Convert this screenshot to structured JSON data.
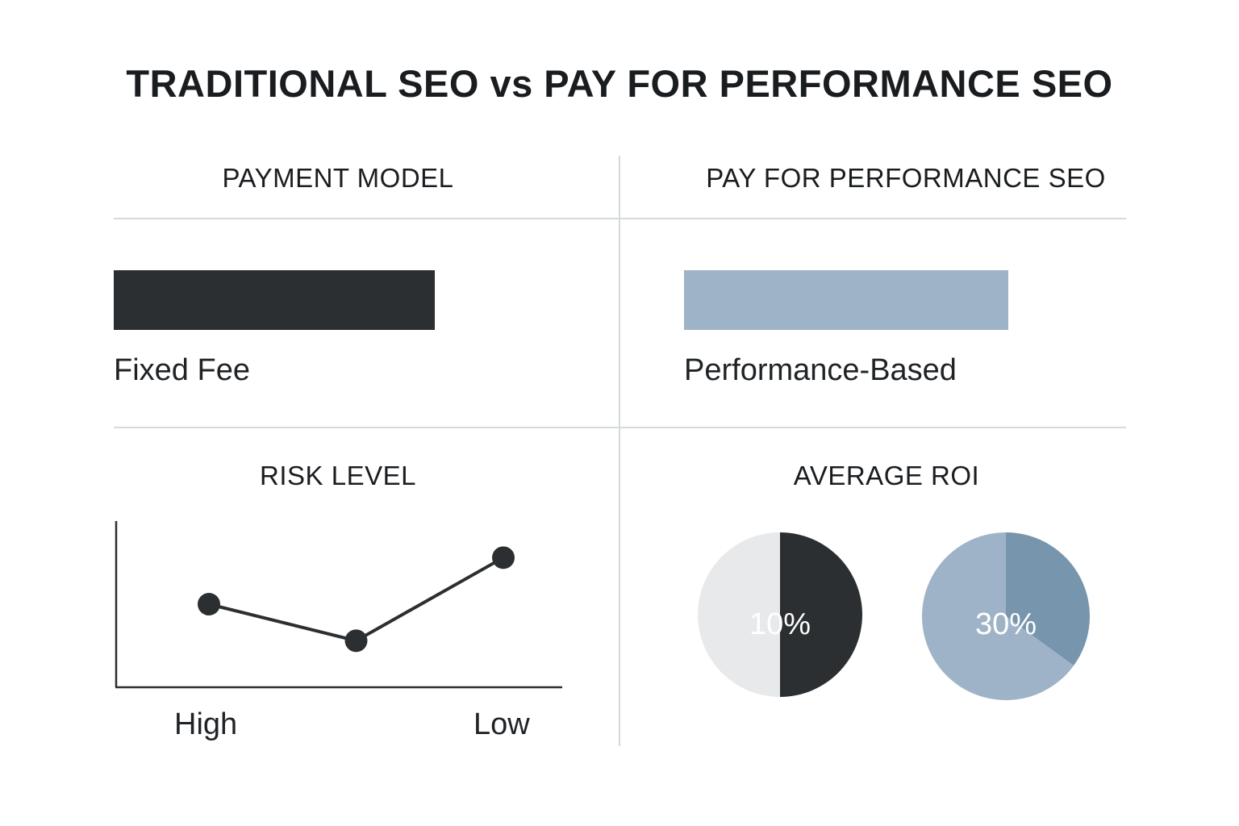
{
  "title": "TRADITIONAL SEO vs PAY FOR PERFORMANCE SEO",
  "colors": {
    "dark": "#2b2f31",
    "blue_light": "#9fb3c8",
    "blue_dark": "#7795ac",
    "light_gray": "#e8e9eb",
    "rule": "#d4d9de"
  },
  "chart_data": [
    {
      "type": "bar",
      "title": "PAYMENT MODEL",
      "categories": [
        "Fixed Fee"
      ],
      "values": [
        1
      ],
      "label": "Fixed Fee",
      "color": "#2b2f31"
    },
    {
      "type": "bar",
      "title": "PAY FOR PERFORMANCE SEO",
      "categories": [
        "Performance-Based"
      ],
      "values": [
        1
      ],
      "label": "Performance-Based",
      "color": "#9fb3c8"
    },
    {
      "type": "line",
      "title": "RISK LEVEL",
      "x_labels": [
        "High",
        "Low"
      ],
      "points": [
        {
          "x": 0,
          "y": 0.5
        },
        {
          "x": 0.5,
          "y": 0.28
        },
        {
          "x": 1,
          "y": 0.78
        }
      ],
      "color": "#2b2f31"
    },
    {
      "type": "pie",
      "title": "AVERAGE ROI",
      "pies": [
        {
          "label": "10%",
          "slices": [
            0.5,
            0.5
          ],
          "colors": [
            "#2b2f31",
            "#e8e9eb"
          ]
        },
        {
          "label": "30%",
          "slices": [
            0.35,
            0.65
          ],
          "colors": [
            "#7795ac",
            "#9fb3c8"
          ]
        }
      ]
    }
  ]
}
